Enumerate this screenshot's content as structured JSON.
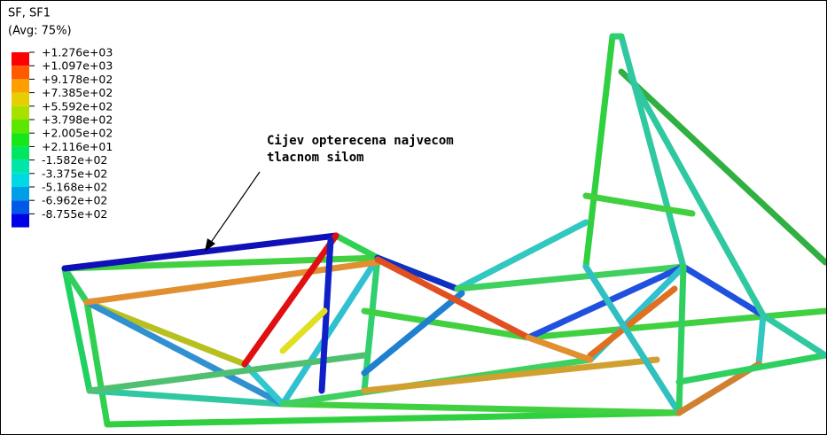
{
  "legend": {
    "title": "SF, SF1",
    "subtitle": "(Avg: 75%)",
    "labels": [
      "+1.276e+03",
      "+1.097e+03",
      "+9.178e+02",
      "+7.385e+02",
      "+5.592e+02",
      "+3.798e+02",
      "+2.005e+02",
      "+2.116e+01",
      "-1.582e+02",
      "-3.375e+02",
      "-5.168e+02",
      "-6.962e+02",
      "-8.755e+02"
    ],
    "colors": [
      "#ff0000",
      "#ff5a00",
      "#ff9e00",
      "#e5cf00",
      "#a8e000",
      "#5ce600",
      "#17e619",
      "#00e663",
      "#00e6a8",
      "#00d8e6",
      "#009ee6",
      "#0058e6",
      "#0000e6"
    ]
  },
  "annotation": {
    "lines": [
      "Cijev opterecena najvecom",
      "tlacnom silom"
    ]
  }
}
